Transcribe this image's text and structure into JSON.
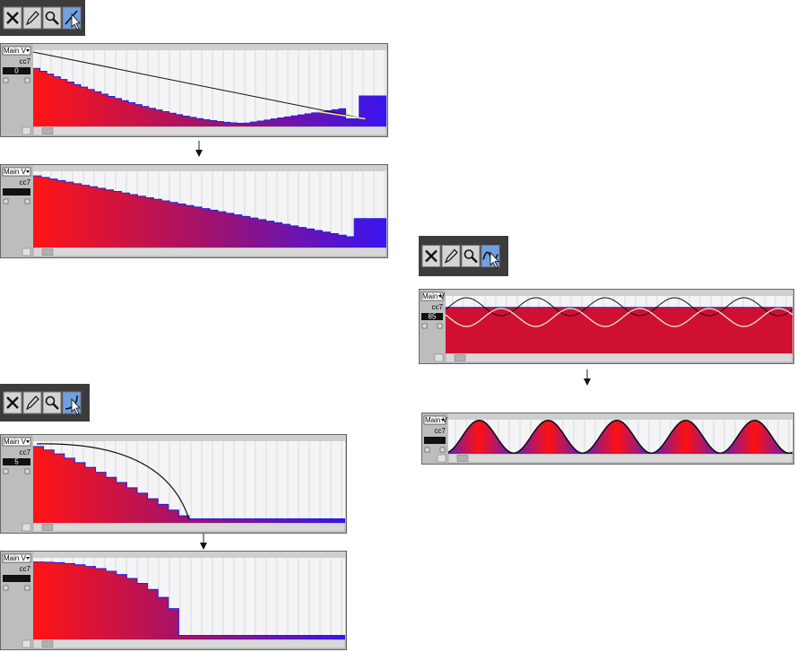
{
  "panels": [
    {
      "lane": "Main V",
      "controller": "cc7",
      "value": 0
    },
    {
      "lane": "Main V",
      "controller": "cc7"
    },
    {
      "lane": "Main V",
      "controller": "cc7",
      "value": 5
    },
    {
      "lane": "Main V",
      "controller": "cc7"
    },
    {
      "lane": "Main V",
      "controller": "cc7",
      "value": 85
    },
    {
      "lane": "Main V",
      "controller": "cc7"
    }
  ]
}
